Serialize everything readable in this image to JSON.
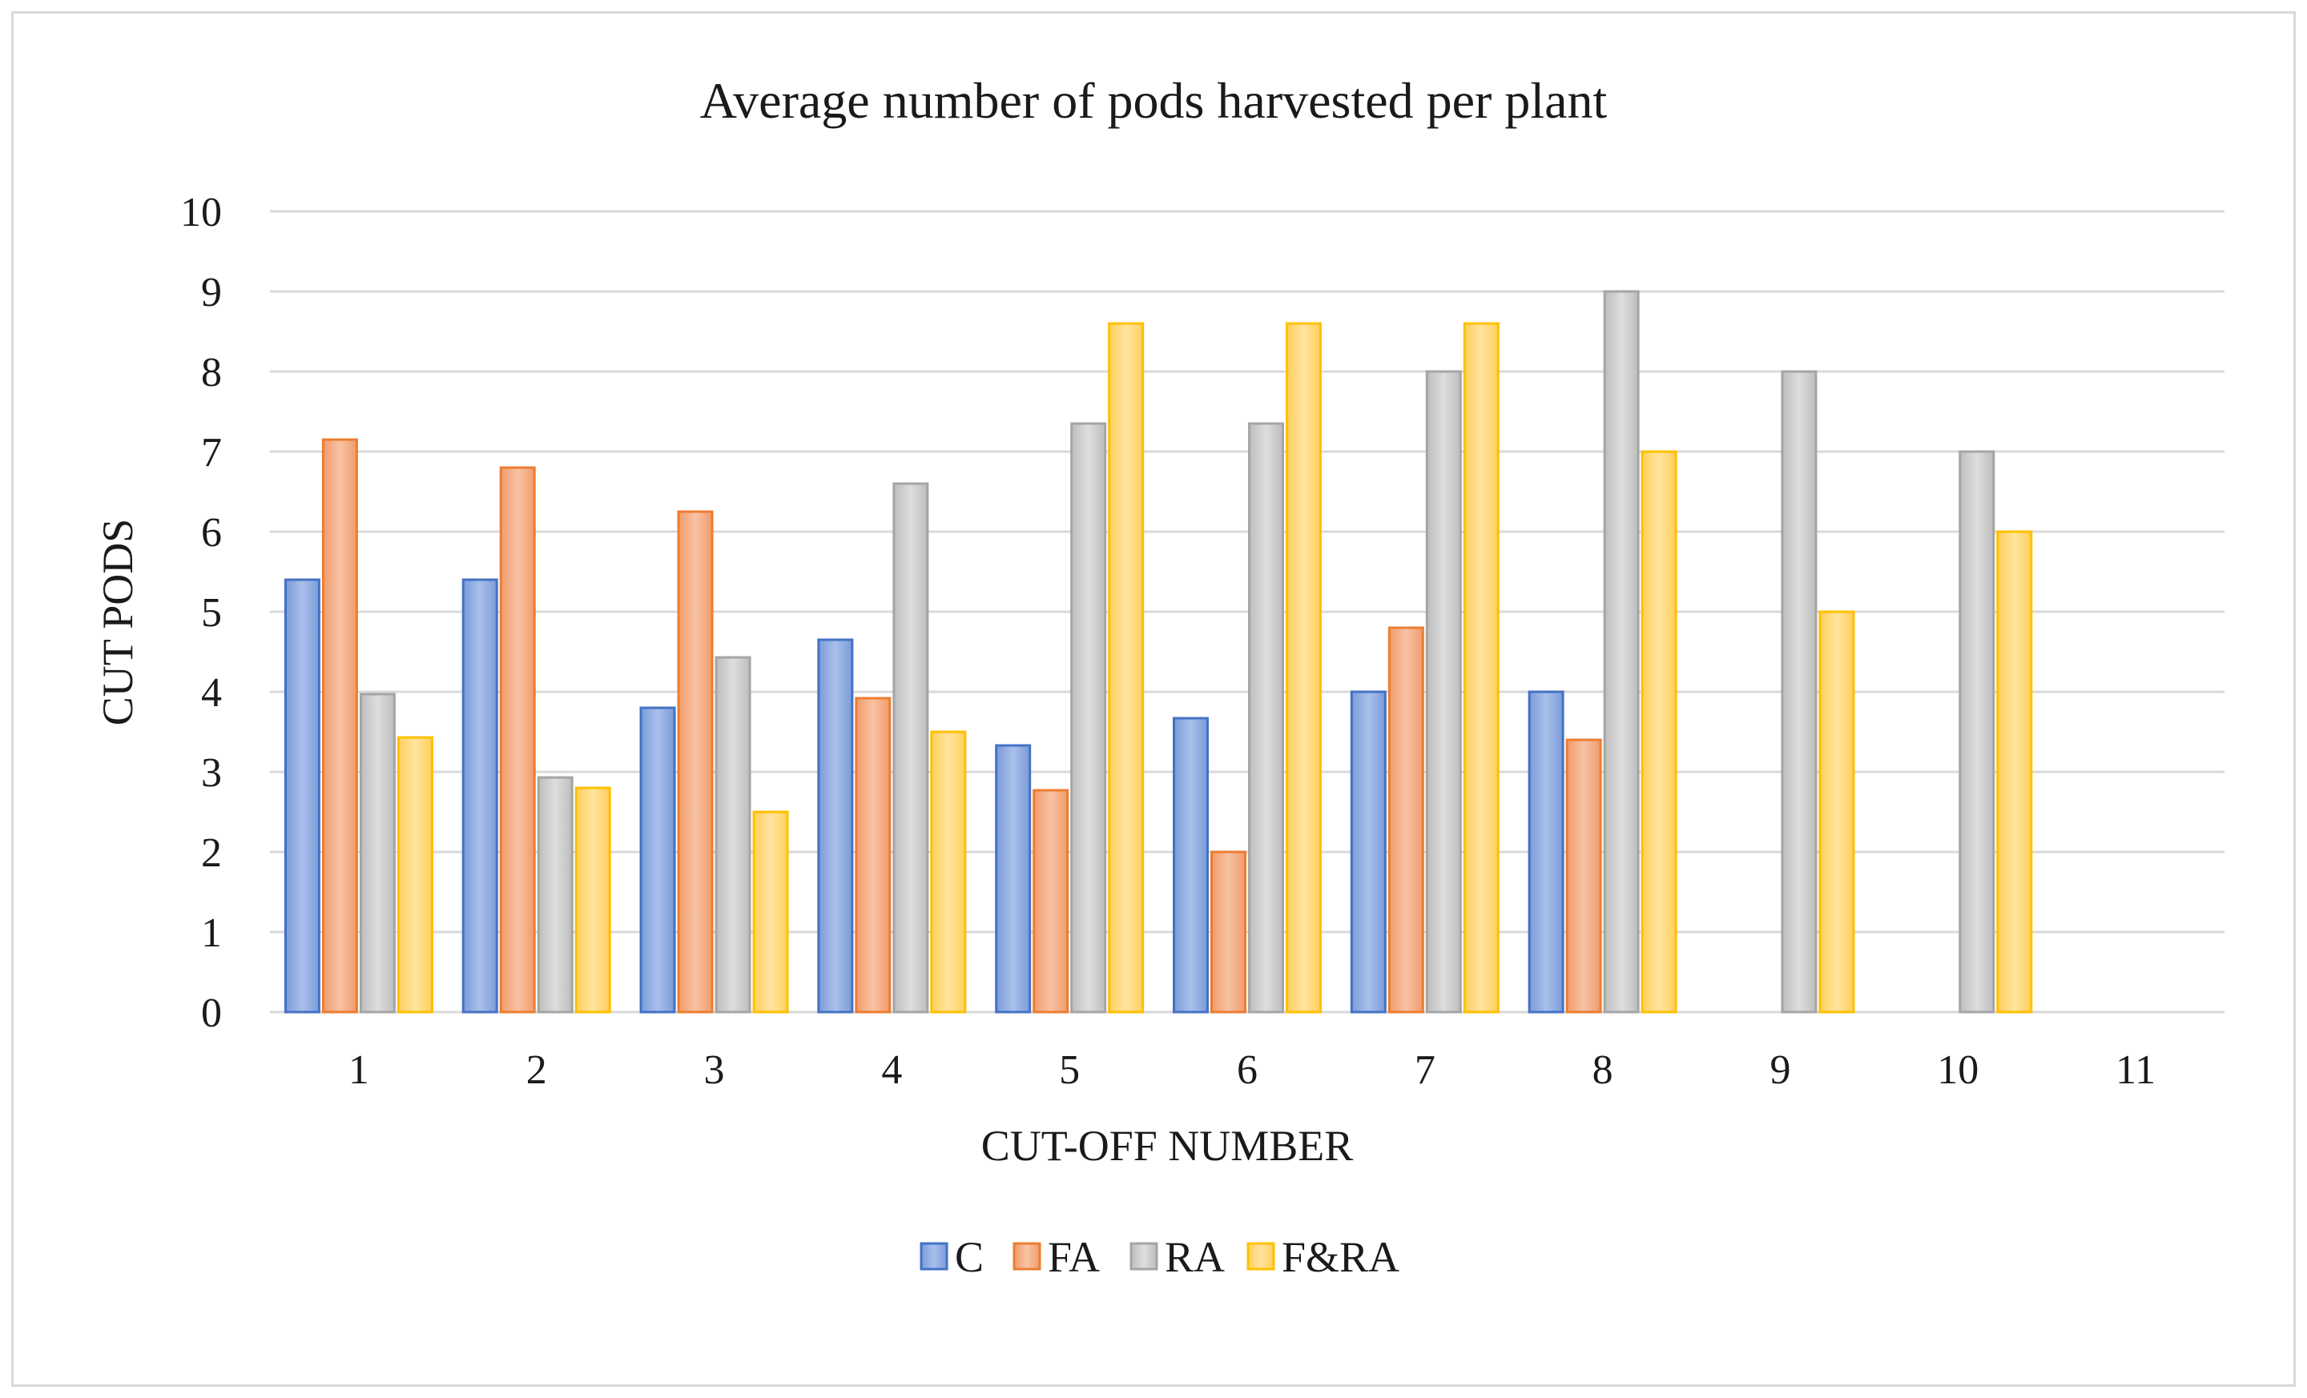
{
  "chart_data": {
    "type": "bar",
    "title": "Average number of pods harvested per plant",
    "xlabel": "CUT-OFF NUMBER",
    "ylabel": "CUT PODS",
    "categories": [
      "1",
      "2",
      "3",
      "4",
      "5",
      "6",
      "7",
      "8",
      "9",
      "10",
      "11"
    ],
    "ylim": [
      0,
      10
    ],
    "yticks": [
      "0",
      "1",
      "2",
      "3",
      "4",
      "5",
      "6",
      "7",
      "8",
      "9",
      "10"
    ],
    "grid": true,
    "legend_position": "bottom",
    "series": [
      {
        "name": "C",
        "color": "#4472C4",
        "values": [
          5.4,
          5.4,
          3.8,
          4.65,
          3.33,
          3.67,
          4.0,
          4.0,
          null,
          null,
          null
        ]
      },
      {
        "name": "FA",
        "color": "#ED7D31",
        "values": [
          7.15,
          6.8,
          6.25,
          3.92,
          2.77,
          2.0,
          4.8,
          3.4,
          null,
          null,
          null
        ]
      },
      {
        "name": "RA",
        "color": "#A5A5A5",
        "values": [
          3.97,
          2.93,
          4.43,
          6.6,
          7.35,
          7.35,
          8.0,
          9.0,
          8.0,
          7.0,
          null
        ]
      },
      {
        "name": "F&RA",
        "color": "#FFC000",
        "values": [
          3.43,
          2.8,
          2.5,
          3.5,
          8.6,
          8.6,
          8.6,
          7.0,
          5.0,
          6.0,
          null
        ]
      }
    ]
  }
}
